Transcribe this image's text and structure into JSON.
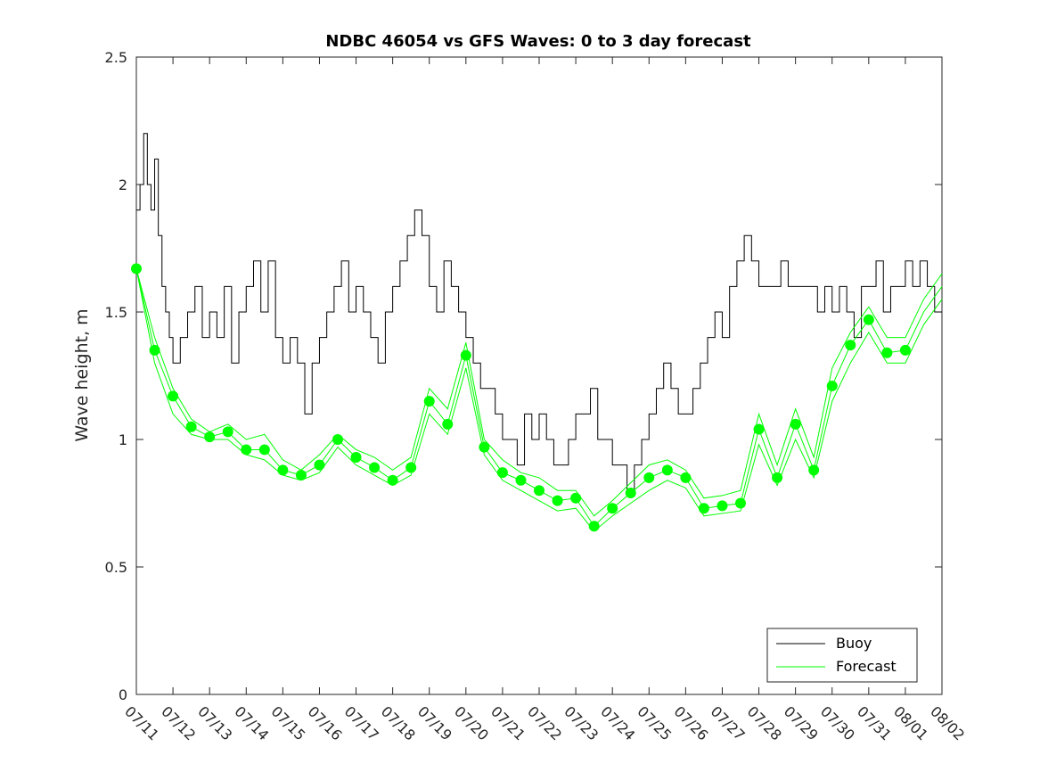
{
  "chart_data": {
    "type": "line",
    "title": "NDBC 46054 vs GFS Waves: 0 to 3 day forecast",
    "xlabel": "",
    "ylabel": "Wave height, m",
    "xlim": [
      "07/11",
      "08/02"
    ],
    "ylim": [
      0,
      2.5
    ],
    "x_tick_labels": [
      "07/11",
      "07/12",
      "07/13",
      "07/14",
      "07/15",
      "07/16",
      "07/17",
      "07/18",
      "07/19",
      "07/20",
      "07/21",
      "07/22",
      "07/23",
      "07/24",
      "07/25",
      "07/26",
      "07/27",
      "07/28",
      "07/29",
      "07/30",
      "07/31",
      "08/01",
      "08/02"
    ],
    "y_ticks": [
      0,
      0.5,
      1,
      1.5,
      2,
      2.5
    ],
    "y_tick_labels": [
      "0",
      "0.5",
      "1",
      "1.5",
      "2",
      "2.5"
    ],
    "legend": {
      "placement": "bottom-right",
      "entries": [
        "Buoy",
        "Forecast"
      ]
    },
    "colors": {
      "buoy": "#000000",
      "forecast": "#00ff00"
    },
    "grid": false,
    "series": [
      {
        "name": "Buoy",
        "x_days_from_07_11": [
          0,
          0.1,
          0.2,
          0.3,
          0.4,
          0.5,
          0.6,
          0.7,
          0.8,
          0.9,
          1.0,
          1.2,
          1.4,
          1.6,
          1.8,
          2.0,
          2.2,
          2.4,
          2.6,
          2.8,
          3.0,
          3.2,
          3.4,
          3.6,
          3.8,
          4.0,
          4.2,
          4.4,
          4.6,
          4.8,
          5.0,
          5.2,
          5.4,
          5.6,
          5.8,
          6.0,
          6.2,
          6.4,
          6.6,
          6.8,
          7.0,
          7.2,
          7.4,
          7.6,
          7.8,
          8.0,
          8.2,
          8.4,
          8.6,
          8.8,
          9.0,
          9.2,
          9.4,
          9.6,
          9.8,
          10.0,
          10.2,
          10.4,
          10.6,
          10.8,
          11.0,
          11.2,
          11.4,
          11.6,
          11.8,
          12.0,
          12.2,
          12.4,
          12.6,
          12.8,
          13.0,
          13.2,
          13.4,
          13.6,
          13.8,
          14.0,
          14.2,
          14.4,
          14.6,
          14.8,
          15.0,
          15.2,
          15.4,
          15.6,
          15.8,
          16.0,
          16.2,
          16.4,
          16.6,
          16.8,
          17.0,
          17.2,
          17.4,
          17.6,
          17.8,
          18.0,
          18.2,
          18.4,
          18.6,
          18.8,
          19.0,
          19.2,
          19.4,
          19.6,
          19.8,
          20.0,
          20.2,
          20.4,
          20.6,
          20.8,
          21.0,
          21.2,
          21.4,
          21.6,
          21.8,
          22.0
        ],
        "values": [
          1.9,
          2.0,
          2.2,
          2.0,
          1.9,
          2.1,
          1.8,
          1.6,
          1.5,
          1.4,
          1.3,
          1.4,
          1.5,
          1.6,
          1.4,
          1.5,
          1.4,
          1.6,
          1.3,
          1.5,
          1.6,
          1.7,
          1.5,
          1.7,
          1.4,
          1.3,
          1.4,
          1.3,
          1.1,
          1.3,
          1.4,
          1.5,
          1.6,
          1.7,
          1.5,
          1.6,
          1.5,
          1.4,
          1.3,
          1.5,
          1.6,
          1.7,
          1.8,
          1.9,
          1.8,
          1.6,
          1.5,
          1.7,
          1.6,
          1.5,
          1.4,
          1.3,
          1.2,
          1.2,
          1.1,
          1.0,
          1.0,
          0.9,
          1.1,
          1.0,
          1.1,
          1.0,
          0.9,
          0.9,
          1.0,
          1.1,
          1.1,
          1.2,
          1.0,
          1.0,
          0.9,
          0.9,
          0.8,
          0.9,
          1.0,
          1.1,
          1.2,
          1.3,
          1.2,
          1.1,
          1.1,
          1.2,
          1.3,
          1.4,
          1.5,
          1.4,
          1.6,
          1.7,
          1.8,
          1.7,
          1.6,
          1.6,
          1.6,
          1.7,
          1.6,
          1.6,
          1.6,
          1.6,
          1.5,
          1.6,
          1.5,
          1.6,
          1.5,
          1.4,
          1.6,
          1.6,
          1.7,
          1.5,
          1.6,
          1.6,
          1.7,
          1.6,
          1.7,
          1.6,
          1.5,
          1.5
        ]
      },
      {
        "name": "Forecast",
        "x_days_from_07_11": [
          0,
          0.5,
          1.0,
          1.5,
          2.0,
          2.5,
          3.0,
          3.5,
          4.0,
          4.5,
          5.0,
          5.5,
          6.0,
          6.5,
          7.0,
          7.5,
          8.0,
          8.5,
          9.0,
          9.5,
          10.0,
          10.5,
          11.0,
          11.5,
          12.0,
          12.5,
          13.0,
          13.5,
          14.0,
          14.5,
          15.0,
          15.5,
          16.0,
          16.5,
          17.0,
          17.5,
          18.0,
          18.5,
          19.0,
          19.5,
          20.0,
          20.5,
          21.0,
          21.5,
          22.0
        ],
        "values": [
          1.67,
          1.35,
          1.17,
          1.05,
          1.01,
          1.03,
          0.96,
          0.96,
          0.88,
          0.86,
          0.9,
          1.0,
          0.93,
          0.89,
          0.84,
          0.89,
          1.15,
          1.06,
          1.33,
          0.97,
          0.87,
          0.84,
          0.8,
          0.76,
          0.77,
          0.66,
          0.73,
          0.79,
          0.85,
          0.88,
          0.85,
          0.73,
          0.74,
          0.75,
          1.04,
          0.85,
          1.06,
          0.88,
          1.21,
          1.37,
          1.47,
          1.34,
          1.35,
          1.5,
          1.6
        ]
      },
      {
        "name": "",
        "x_days_from_07_11": [
          0,
          0.5,
          1.0,
          1.5,
          2.0,
          2.5,
          3.0,
          3.5,
          4.0,
          4.5,
          5.0,
          5.5,
          6.0,
          6.5,
          7.0,
          7.5,
          8.0,
          8.5,
          9.0,
          9.5,
          10.0,
          10.5,
          11.0,
          11.5,
          12.0,
          12.5,
          13.0,
          13.5,
          14.0,
          14.5,
          15.0,
          15.5,
          16.0,
          16.5,
          17.0,
          17.5,
          18.0,
          18.5,
          19.0,
          19.5,
          20.0,
          20.5,
          21.0,
          21.5,
          22.0
        ],
        "values": [
          1.67,
          1.4,
          1.2,
          1.08,
          1.03,
          1.06,
          1.0,
          1.02,
          0.92,
          0.88,
          0.94,
          1.02,
          0.96,
          0.93,
          0.88,
          0.93,
          1.2,
          1.12,
          1.38,
          1.0,
          0.92,
          0.87,
          0.85,
          0.8,
          0.8,
          0.7,
          0.76,
          0.83,
          0.9,
          0.92,
          0.88,
          0.77,
          0.78,
          0.8,
          1.1,
          0.9,
          1.12,
          0.93,
          1.28,
          1.42,
          1.52,
          1.4,
          1.4,
          1.55,
          1.65
        ]
      },
      {
        "name": "",
        "x_days_from_07_11": [
          0,
          0.5,
          1.0,
          1.5,
          2.0,
          2.5,
          3.0,
          3.5,
          4.0,
          4.5,
          5.0,
          5.5,
          6.0,
          6.5,
          7.0,
          7.5,
          8.0,
          8.5,
          9.0,
          9.5,
          10.0,
          10.5,
          11.0,
          11.5,
          12.0,
          12.5,
          13.0,
          13.5,
          14.0,
          14.5,
          15.0,
          15.5,
          16.0,
          16.5,
          17.0,
          17.5,
          18.0,
          18.5,
          19.0,
          19.5,
          20.0,
          20.5,
          21.0,
          21.5,
          22.0
        ],
        "values": [
          1.67,
          1.3,
          1.1,
          1.02,
          1.0,
          1.0,
          0.94,
          0.92,
          0.86,
          0.84,
          0.87,
          0.97,
          0.9,
          0.86,
          0.82,
          0.86,
          1.1,
          1.02,
          1.28,
          0.94,
          0.84,
          0.8,
          0.76,
          0.72,
          0.73,
          0.64,
          0.7,
          0.75,
          0.8,
          0.84,
          0.81,
          0.7,
          0.71,
          0.72,
          0.98,
          0.82,
          1.0,
          0.85,
          1.15,
          1.3,
          1.42,
          1.3,
          1.3,
          1.45,
          1.55
        ]
      }
    ]
  }
}
